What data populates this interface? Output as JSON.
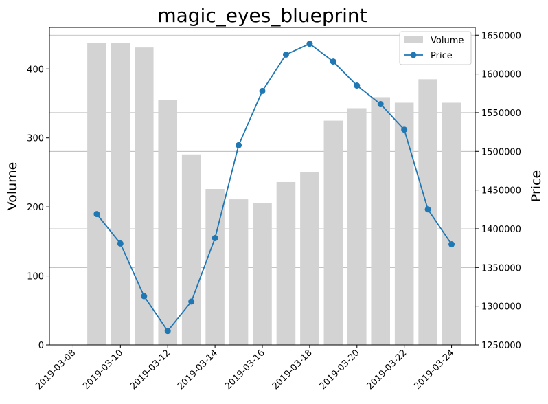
{
  "chart_data": {
    "type": "bar+line",
    "title": "magic_eyes_blueprint",
    "ylabel_left": "Volume",
    "ylabel_right": "Price",
    "x": [
      "2019-03-09",
      "2019-03-10",
      "2019-03-11",
      "2019-03-12",
      "2019-03-13",
      "2019-03-14",
      "2019-03-15",
      "2019-03-16",
      "2019-03-17",
      "2019-03-18",
      "2019-03-19",
      "2019-03-20",
      "2019-03-21",
      "2019-03-22",
      "2019-03-23",
      "2019-03-24"
    ],
    "x_ticks": [
      "2019-03-08",
      "2019-03-10",
      "2019-03-12",
      "2019-03-14",
      "2019-03-16",
      "2019-03-18",
      "2019-03-20",
      "2019-03-22",
      "2019-03-24"
    ],
    "x_range": [
      "2019-03-07",
      "2019-03-25"
    ],
    "series": [
      {
        "name": "Volume",
        "kind": "bar",
        "axis": "left",
        "color": "#d3d3d3",
        "values": [
          438,
          438,
          431,
          355,
          276,
          226,
          211,
          206,
          236,
          250,
          325,
          343,
          359,
          351,
          385,
          351
        ]
      },
      {
        "name": "Price",
        "kind": "line",
        "axis": "right",
        "color": "#1f77b4",
        "values": [
          1419000,
          1381000,
          1313000,
          1268000,
          1306000,
          1388000,
          1508000,
          1578000,
          1625000,
          1639000,
          1616000,
          1585000,
          1561000,
          1528000,
          1425000,
          1380000
        ]
      }
    ],
    "y_left": {
      "range": [
        0,
        460
      ],
      "ticks": [
        0,
        100,
        200,
        300,
        400
      ]
    },
    "y_right": {
      "range": [
        1250000,
        1660000
      ],
      "ticks": [
        1250000,
        1300000,
        1350000,
        1400000,
        1450000,
        1500000,
        1550000,
        1600000,
        1650000
      ]
    },
    "grid": "horizontal (right axis)",
    "legend": "top-right"
  }
}
